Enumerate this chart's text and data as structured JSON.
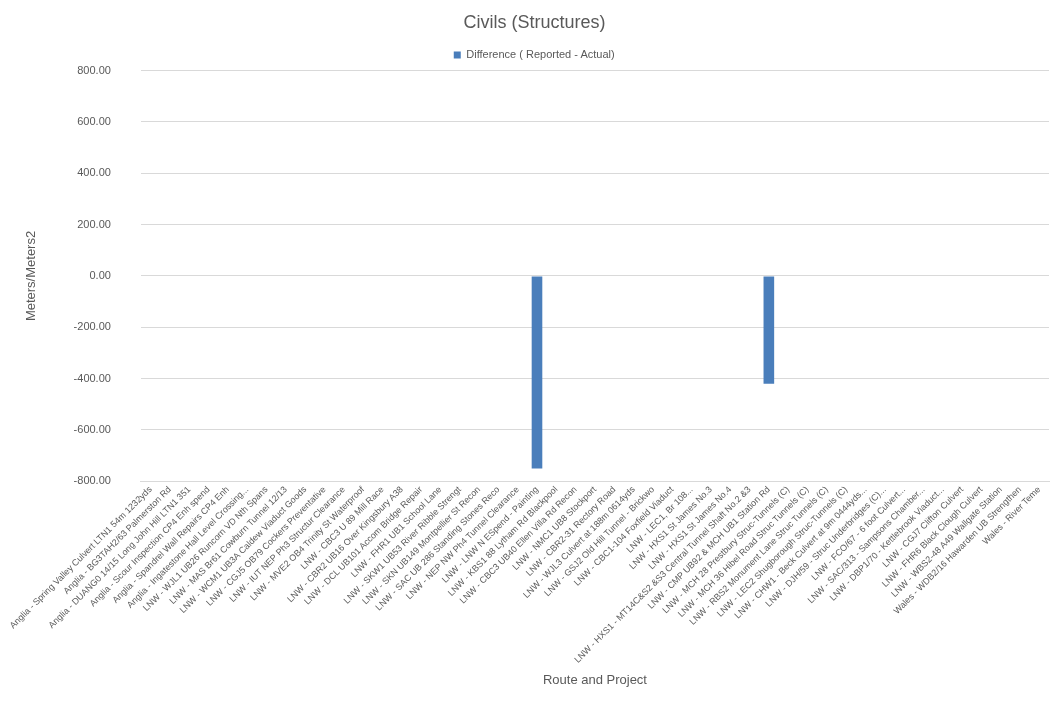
{
  "chart_data": {
    "type": "bar",
    "title": "Civils (Structures)",
    "xlabel": "Route and Project",
    "ylabel": "Meters/Meters2",
    "categories": [
      "Anglia - Spring Valley Culvert LTN1 54m 1232yds",
      "Anglia - BG3TAH2/63 Palmerston Rd",
      "Anglia - DUANG0 14/15 Long John Hill LTN1 351",
      "Anglia - Scour Inspection CP4 Enh spend",
      "Anglia - Spandrel Wall Repairs CP4 Enh",
      "Anglia - Ingatestone Hall Level Crossing...",
      "LNW - WJL1 UB26 Runcorn VD Nth Spans",
      "LNW - MAS Br61 Cowburn Tunnel 12/13",
      "LNW - WCM1 UB3A Caldew Viaduct Goods",
      "LNW - CGJ5 OB79 Cockers Preventative",
      "LNW - IUT NEP Ph3 Structur Clearance",
      "LNW - MVE2 OB4 Trinity St Waterproof",
      "LNW - CBC3 U 89 Mill Race",
      "LNW - CBR2 UB16 Over Kingsbury A38",
      "LNW - DCL UB101 Accom Bridge Repair",
      "LNW - FHR1 UB1 School Lane",
      "LNW - SKW1 UB53 River Ribble Strengt",
      "LNW - SKN UB149 Montpellier St Recon",
      "LNW - SAC UB 286 Standing Stones Reco",
      "LNW - NEP NW Ph4 Tunnel Clearance",
      "LNW - LNW N ESpend - Painting",
      "LNW - KBS1 88 Lytham Rd Blackpool",
      "LNW - CBC3 UB40 Ellen Villa Rd Recon",
      "LNW - NMC1 UB8 Stockport",
      "LNW - CBR2-31 Rectory Road",
      "LNW - WJL3 Culvert at 188m 0614yds",
      "LNW - GSJ2 Old Hill Tunnel - Brickwo",
      "LNW - CBC1-104 Foxfield Viaduct",
      "LNW - LEC1, Br 108...",
      "LNW - HXS1 St James No.3",
      "LNW - HXS1 St James No.4",
      "LNW - HXS1 - MT14C&S2 &S3 Central Tunnel Shaft No.2 &3",
      "LNW - CMP UB92 & MCH UB1 Station Rd",
      "LNW - MCH 28 Prestbury Struc-Tunnels (C)",
      "LNW - MCH 36 Hibel Road Struc Tunnels (C)",
      "LNW - RBS2 Monument Lane Struc Tunnels (C)",
      "LNW - LEC2 Shugborough Struc-Tunnels (C)",
      "LNW - CHW1 - Beck Culvert at 9m 0444yds...",
      "LNW - DJH/59 - Struc Underbridges (C)...",
      "LNW - FCO/67 - 6 foot Culvert...",
      "LNW - SAC/313 - Sampsons Chamber...",
      "LNW - DBP1/70 - Kettlebrook Viaduct...",
      "LNW - CGJ7 Clifton Culvert",
      "LNW - FHR6 Black Clough Culvert",
      "LNW - WBS2-48 A49 Wallgate Station",
      "Wales - WDB2/16 Hawarden UB Strengthen",
      "Wales - River Teme"
    ],
    "series": [
      {
        "name": "Difference ( Reported - Actual)",
        "color": "#4a7ebb",
        "values": [
          null,
          null,
          null,
          null,
          null,
          null,
          null,
          null,
          null,
          null,
          null,
          null,
          null,
          null,
          null,
          null,
          null,
          null,
          null,
          null,
          -750,
          null,
          null,
          null,
          null,
          null,
          null,
          null,
          null,
          null,
          null,
          null,
          -420,
          null,
          null,
          null,
          null,
          null,
          null,
          null,
          null,
          null,
          null,
          null,
          null,
          null,
          null
        ]
      }
    ],
    "ylim": [
      -800,
      800
    ],
    "yticks": [
      {
        "value": -800,
        "label": "-800.00"
      },
      {
        "value": -600,
        "label": "-600.00"
      },
      {
        "value": -400,
        "label": "-400.00"
      },
      {
        "value": -200,
        "label": "-200.00"
      },
      {
        "value": 0,
        "label": "0.00"
      },
      {
        "value": 200,
        "label": "200.00"
      },
      {
        "value": 400,
        "label": "400.00"
      },
      {
        "value": 600,
        "label": "600.00"
      },
      {
        "value": 800,
        "label": "800.00"
      }
    ],
    "grid": "y",
    "legend": "top"
  }
}
